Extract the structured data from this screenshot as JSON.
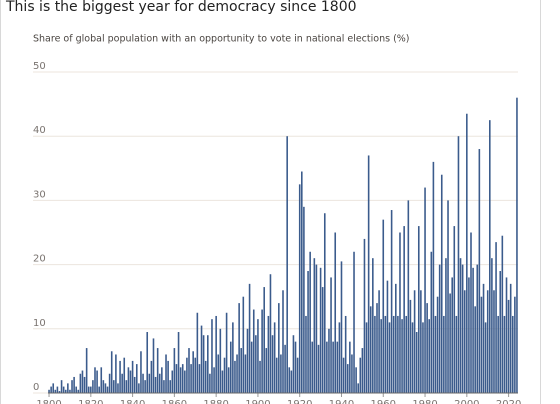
{
  "chart_data": {
    "type": "bar",
    "title": "This is the biggest year for democracy since 1800",
    "subtitle": "Share of global population with an opportunity to vote in national elections (%)",
    "x": [
      1800,
      1801,
      1802,
      1803,
      1804,
      1805,
      1806,
      1807,
      1808,
      1809,
      1810,
      1811,
      1812,
      1813,
      1814,
      1815,
      1816,
      1817,
      1818,
      1819,
      1820,
      1821,
      1822,
      1823,
      1824,
      1825,
      1826,
      1827,
      1828,
      1829,
      1830,
      1831,
      1832,
      1833,
      1834,
      1835,
      1836,
      1837,
      1838,
      1839,
      1840,
      1841,
      1842,
      1843,
      1844,
      1845,
      1846,
      1847,
      1848,
      1849,
      1850,
      1851,
      1852,
      1853,
      1854,
      1855,
      1856,
      1857,
      1858,
      1859,
      1860,
      1861,
      1862,
      1863,
      1864,
      1865,
      1866,
      1867,
      1868,
      1869,
      1870,
      1871,
      1872,
      1873,
      1874,
      1875,
      1876,
      1877,
      1878,
      1879,
      1880,
      1881,
      1882,
      1883,
      1884,
      1885,
      1886,
      1887,
      1888,
      1889,
      1890,
      1891,
      1892,
      1893,
      1894,
      1895,
      1896,
      1897,
      1898,
      1899,
      1900,
      1901,
      1902,
      1903,
      1904,
      1905,
      1906,
      1907,
      1908,
      1909,
      1910,
      1911,
      1912,
      1913,
      1914,
      1915,
      1916,
      1917,
      1918,
      1919,
      1920,
      1921,
      1922,
      1923,
      1924,
      1925,
      1926,
      1927,
      1928,
      1929,
      1930,
      1931,
      1932,
      1933,
      1934,
      1935,
      1936,
      1937,
      1938,
      1939,
      1940,
      1941,
      1942,
      1943,
      1944,
      1945,
      1946,
      1947,
      1948,
      1949,
      1950,
      1951,
      1952,
      1953,
      1954,
      1955,
      1956,
      1957,
      1958,
      1959,
      1960,
      1961,
      1962,
      1963,
      1964,
      1965,
      1966,
      1967,
      1968,
      1969,
      1970,
      1971,
      1972,
      1973,
      1974,
      1975,
      1976,
      1977,
      1978,
      1979,
      1980,
      1981,
      1982,
      1983,
      1984,
      1985,
      1986,
      1987,
      1988,
      1989,
      1990,
      1991,
      1992,
      1993,
      1994,
      1995,
      1996,
      1997,
      1998,
      1999,
      2000,
      2001,
      2002,
      2003,
      2004,
      2005,
      2006,
      2007,
      2008,
      2009,
      2010,
      2011,
      2012,
      2013,
      2014,
      2015,
      2016,
      2017,
      2018,
      2019,
      2020,
      2021,
      2022,
      2023,
      2024
    ],
    "values": [
      0.5,
      1,
      1.5,
      0.5,
      1,
      0.3,
      2,
      1,
      0.5,
      1.5,
      0.5,
      2,
      2.5,
      1,
      0.5,
      3,
      3.5,
      2.5,
      7,
      1,
      1,
      2,
      4,
      3.5,
      1,
      4,
      2,
      1.5,
      1,
      3,
      6.5,
      2,
      6,
      1.5,
      5,
      3,
      5.5,
      2,
      4,
      3.5,
      5,
      2.5,
      4.5,
      1.5,
      6.5,
      3,
      2,
      9.5,
      3,
      5,
      8.5,
      2.5,
      7,
      3,
      4,
      2,
      6,
      5,
      2,
      3.5,
      7,
      4.5,
      9.5,
      4,
      4.5,
      3.5,
      5.5,
      7,
      4.5,
      6.5,
      5.5,
      12.5,
      4.5,
      10.5,
      9,
      5,
      9,
      3,
      11.5,
      4,
      12,
      6,
      10,
      3.5,
      5.5,
      12.5,
      4,
      8,
      11,
      5,
      6,
      14,
      7,
      15,
      6,
      10,
      17,
      8,
      13,
      9,
      11.5,
      5,
      13,
      16.5,
      7,
      12,
      18.5,
      9,
      11,
      5.5,
      14,
      6,
      16,
      7.5,
      40,
      4,
      3.5,
      9,
      8,
      5.5,
      32.5,
      34.5,
      29,
      12,
      19,
      22,
      8,
      21,
      20,
      7.5,
      19.5,
      16.5,
      28,
      8,
      10,
      18,
      8,
      25,
      8,
      11,
      20.5,
      5.5,
      12,
      4.5,
      8,
      6,
      22,
      4,
      1.5,
      5.5,
      7,
      24,
      11,
      37,
      13.5,
      21,
      12,
      14,
      16,
      11.5,
      27,
      12,
      17.5,
      11,
      28.5,
      12,
      17,
      12,
      25,
      11.5,
      26,
      12,
      30,
      14.5,
      11,
      16,
      9.5,
      26,
      16,
      11,
      32,
      14,
      11.5,
      22,
      36,
      12,
      15,
      20,
      34,
      12,
      21,
      30,
      15.5,
      18,
      26,
      12,
      40,
      21,
      20,
      16,
      43.5,
      18,
      25,
      19.5,
      13.5,
      20,
      38,
      15,
      17,
      11,
      16,
      42.5,
      21,
      16,
      23.5,
      12,
      19,
      24.5,
      12,
      18,
      14.5,
      17,
      12,
      15,
      46
    ],
    "color": "#3b5b8c",
    "xlim": [
      1799.5,
      2024.5
    ],
    "xticks": [
      1800,
      1820,
      1840,
      1860,
      1880,
      1900,
      1920,
      1940,
      1960,
      1980,
      2000,
      2020
    ],
    "ylim": [
      0,
      50
    ],
    "yticks": [
      0,
      10,
      20,
      30,
      40,
      50
    ],
    "grid": true
  }
}
